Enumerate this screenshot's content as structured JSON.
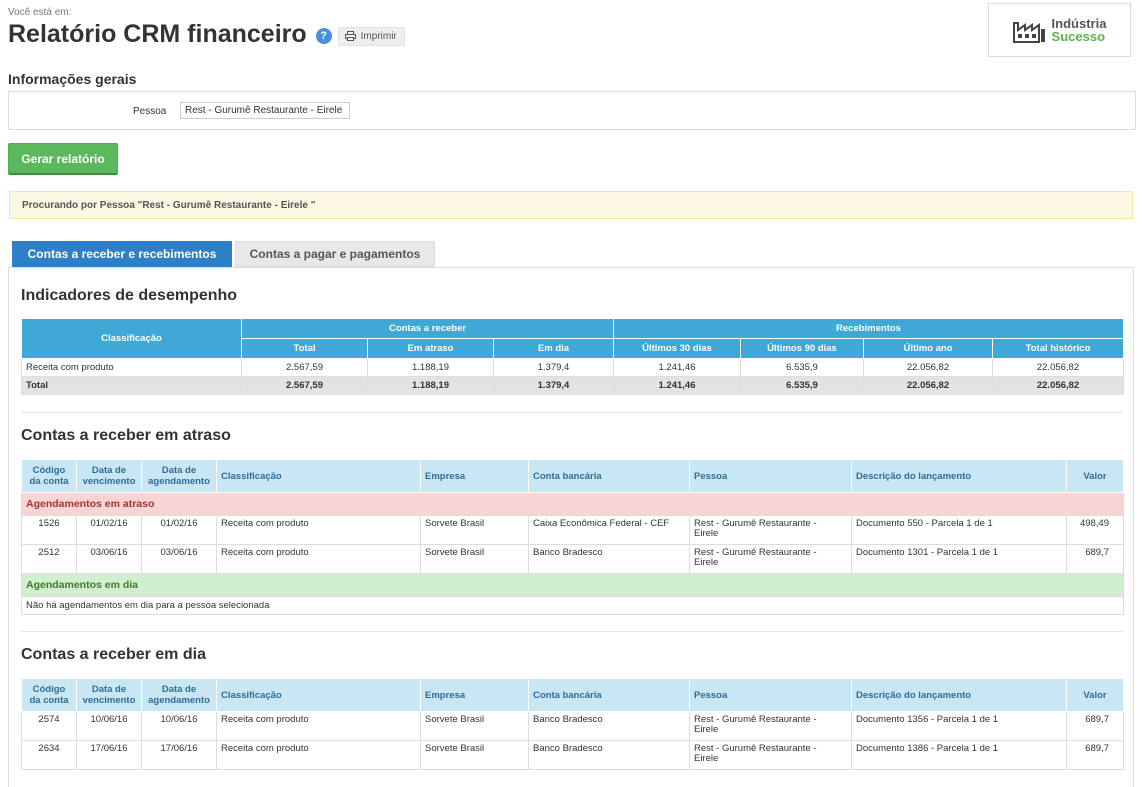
{
  "breadcrumb": "Você está em:",
  "title": "Relatório CRM financeiro",
  "help_symbol": "?",
  "print_label": "Imprimir",
  "logo": {
    "line1": "Indústria",
    "line2": "Sucesso"
  },
  "general": {
    "heading": "Informações gerais",
    "person_label": "Pessoa",
    "person_value": "Rest - Gurumê Restaurante -  Eirele"
  },
  "generate_label": "Gerar relatório",
  "alert_text": "Procurando por Pessoa \"Rest - Gurumê Restaurante - Eirele \"",
  "tabs": [
    {
      "label": "Contas a receber e recebimentos"
    },
    {
      "label": "Contas a pagar e pagamentos"
    }
  ],
  "performance": {
    "heading": "Indicadores de desempenho",
    "col_class": "Classificação",
    "group1": "Contas a receber",
    "group2": "Recebimentos",
    "cols": [
      "Total",
      "Em atraso",
      "Em dia",
      "Últimos 30 dias",
      "Últimos 90 dias",
      "Último ano",
      "Total histórico"
    ],
    "rows": [
      {
        "label": "Receita com produto",
        "values": [
          "2.567,59",
          "1.188,19",
          "1.379,4",
          "1.241,46",
          "6.535,9",
          "22.056,82",
          "22.056,82"
        ]
      }
    ],
    "total": {
      "label": "Total",
      "values": [
        "2.567,59",
        "1.188,19",
        "1.379,4",
        "1.241,46",
        "6.535,9",
        "22.056,82",
        "22.056,82"
      ]
    }
  },
  "account_cols": {
    "code": [
      "Código",
      "da conta"
    ],
    "due": [
      "Data de",
      "vencimento"
    ],
    "sched": [
      "Data de",
      "agendamento"
    ],
    "class": "Classificação",
    "company": "Empresa",
    "bank": "Conta bancária",
    "person": "Pessoa",
    "desc": "Descrição do lançamento",
    "value": "Valor"
  },
  "overdue": {
    "heading": "Contas a receber em atraso",
    "group_late": "Agendamentos em atraso",
    "rows": [
      {
        "code": "1526",
        "due": "01/02/16",
        "sched": "01/02/16",
        "class": "Receita com produto",
        "company": "Sorvete Brasil",
        "bank": "Caixa Econômica Federal - CEF",
        "person": [
          "Rest - Gurumê Restaurante -",
          "Eirele"
        ],
        "desc": "Documento 550 - Parcela 1 de 1",
        "value": "498,49"
      },
      {
        "code": "2512",
        "due": "03/06/16",
        "sched": "03/06/16",
        "class": "Receita com produto",
        "company": "Sorvete Brasil",
        "bank": "Banco Bradesco",
        "person": [
          "Rest - Gurumê Restaurante -",
          "Eirele"
        ],
        "desc": "Documento 1301 - Parcela 1 de 1",
        "value": "689,7"
      }
    ],
    "group_ontime": "Agendamentos em dia",
    "empty_text": "Não há agendamentos em dia para a pessoa selecionada"
  },
  "ontime": {
    "heading": "Contas a receber em dia",
    "rows": [
      {
        "code": "2574",
        "due": "10/06/16",
        "sched": "10/06/16",
        "class": "Receita com produto",
        "company": "Sorvete Brasil",
        "bank": "Banco Bradesco",
        "person": [
          "Rest - Gurumê Restaurante -",
          "Eirele"
        ],
        "desc": "Documento 1356 - Parcela 1 de 1",
        "value": "689,7"
      },
      {
        "code": "2634",
        "due": "17/06/16",
        "sched": "17/06/16",
        "class": "Receita com produto",
        "company": "Sorvete Brasil",
        "bank": "Banco Bradesco",
        "person": [
          "Rest - Gurumê Restaurante -",
          "Eirele"
        ],
        "desc": "Documento 1386 - Parcela 1 de 1",
        "value": "689,7"
      }
    ]
  }
}
